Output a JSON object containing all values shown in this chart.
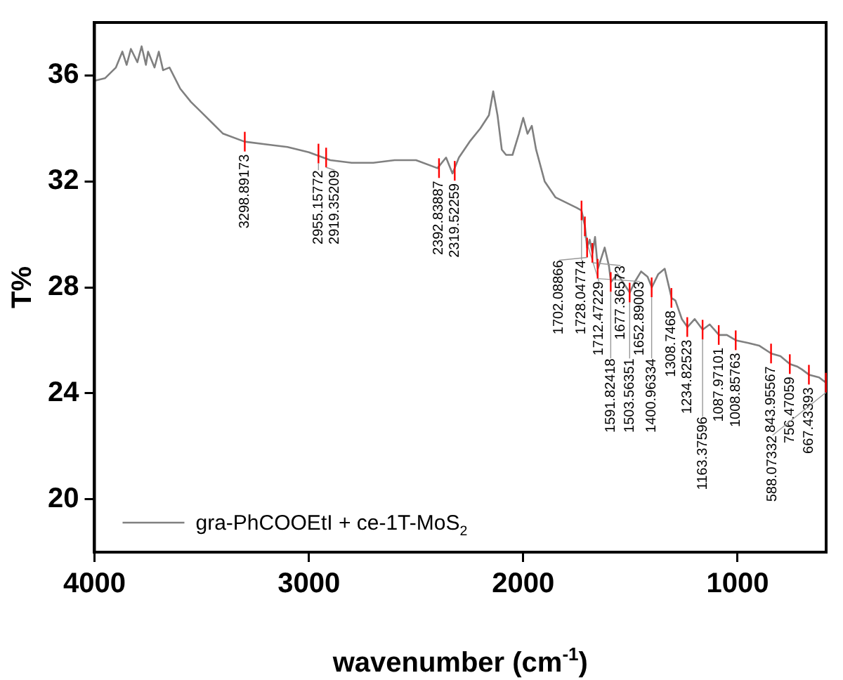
{
  "chart_data": {
    "type": "line",
    "xlabel": "wavenumber (cm$^{-1}$)",
    "ylabel": "T%",
    "xlim": [
      4000,
      587
    ],
    "ylim": [
      18,
      38
    ],
    "xticks": [
      4000,
      3000,
      2000,
      1000
    ],
    "yticks": [
      20,
      24,
      28,
      32,
      36
    ],
    "grid": false,
    "legend": "bottom left",
    "marker": "none",
    "line_style": "solid",
    "series": [
      {
        "name": "gra-PhCOOEtI + ce-1T-MoS$_{2}$",
        "color": "#808080",
        "x": [
          4000,
          3950,
          3900,
          3870,
          3850,
          3830,
          3800,
          3780,
          3760,
          3750,
          3720,
          3700,
          3680,
          3650,
          3600,
          3550,
          3500,
          3450,
          3400,
          3300,
          3200,
          3100,
          3000,
          2900,
          2800,
          2700,
          2600,
          2500,
          2400,
          2360,
          2330,
          2300,
          2250,
          2200,
          2160,
          2140,
          2120,
          2100,
          2080,
          2050,
          2020,
          2000,
          1980,
          1960,
          1940,
          1900,
          1850,
          1800,
          1750,
          1728,
          1712,
          1702,
          1690,
          1677,
          1665,
          1652,
          1620,
          1600,
          1591,
          1560,
          1503,
          1480,
          1450,
          1420,
          1400,
          1370,
          1340,
          1308,
          1290,
          1260,
          1234,
          1200,
          1163,
          1130,
          1087,
          1050,
          1008,
          950,
          900,
          843,
          800,
          756,
          720,
          700,
          667,
          620,
          588
        ],
        "values": [
          35.8,
          35.9,
          36.3,
          36.9,
          36.4,
          37.0,
          36.5,
          37.1,
          36.4,
          36.9,
          36.3,
          36.9,
          36.2,
          36.3,
          35.5,
          35.0,
          34.6,
          34.2,
          33.8,
          33.5,
          33.4,
          33.3,
          33.1,
          32.8,
          32.7,
          32.7,
          32.8,
          32.8,
          32.5,
          32.9,
          32.3,
          32.9,
          33.5,
          34.0,
          34.5,
          35.4,
          34.5,
          33.2,
          33.0,
          33.0,
          33.8,
          34.4,
          33.8,
          34.1,
          33.2,
          32.0,
          31.4,
          31.2,
          31.0,
          30.9,
          30.3,
          29.5,
          29.8,
          29.3,
          29.9,
          28.7,
          29.5,
          28.8,
          28.2,
          28.5,
          27.8,
          28.2,
          28.6,
          28.4,
          28.0,
          28.5,
          28.7,
          27.6,
          27.5,
          26.8,
          26.5,
          26.8,
          26.4,
          26.6,
          26.2,
          26.2,
          26.0,
          25.9,
          25.8,
          25.5,
          25.4,
          25.1,
          25.0,
          24.9,
          24.7,
          24.6,
          24.4
        ]
      }
    ],
    "annotations": [
      {
        "text": "3298.89173",
        "x": 3298.89173,
        "y": 33.5
      },
      {
        "text": "2955.15772",
        "x": 2955.15772,
        "y": 33.05
      },
      {
        "text": "2919.35209",
        "x": 2919.35209,
        "y": 32.9
      },
      {
        "text": "2392.83887",
        "x": 2392.83887,
        "y": 32.5
      },
      {
        "text": "2319.52259",
        "x": 2319.52259,
        "y": 32.4
      },
      {
        "text": "1728.04774",
        "x": 1728.04774,
        "y": 30.9
      },
      {
        "text": "1712.47229",
        "x": 1712.47229,
        "y": 30.3
      },
      {
        "text": "1702.08866",
        "x": 1702.08866,
        "y": 29.5
      },
      {
        "text": "1677.36573",
        "x": 1677.36573,
        "y": 29.3
      },
      {
        "text": "1652.89003",
        "x": 1652.89003,
        "y": 28.7
      },
      {
        "text": "1591.82418",
        "x": 1591.82418,
        "y": 28.2
      },
      {
        "text": "1503.56351",
        "x": 1503.56351,
        "y": 27.8
      },
      {
        "text": "1400.96334",
        "x": 1400.96334,
        "y": 28.0
      },
      {
        "text": "1308.7468",
        "x": 1308.7468,
        "y": 27.6
      },
      {
        "text": "1234.82523",
        "x": 1234.82523,
        "y": 26.5
      },
      {
        "text": "1163.37596",
        "x": 1163.37596,
        "y": 26.4
      },
      {
        "text": "1087.97101",
        "x": 1087.97101,
        "y": 26.2
      },
      {
        "text": "1008.85763",
        "x": 1008.85763,
        "y": 26.0
      },
      {
        "text": "843.95567",
        "x": 843.95567,
        "y": 25.5
      },
      {
        "text": "756.47059",
        "x": 756.47059,
        "y": 25.1
      },
      {
        "text": "667.43393",
        "x": 667.43393,
        "y": 24.7
      },
      {
        "text": "588.07332",
        "x": 588.07332,
        "y": 24.4
      }
    ]
  }
}
